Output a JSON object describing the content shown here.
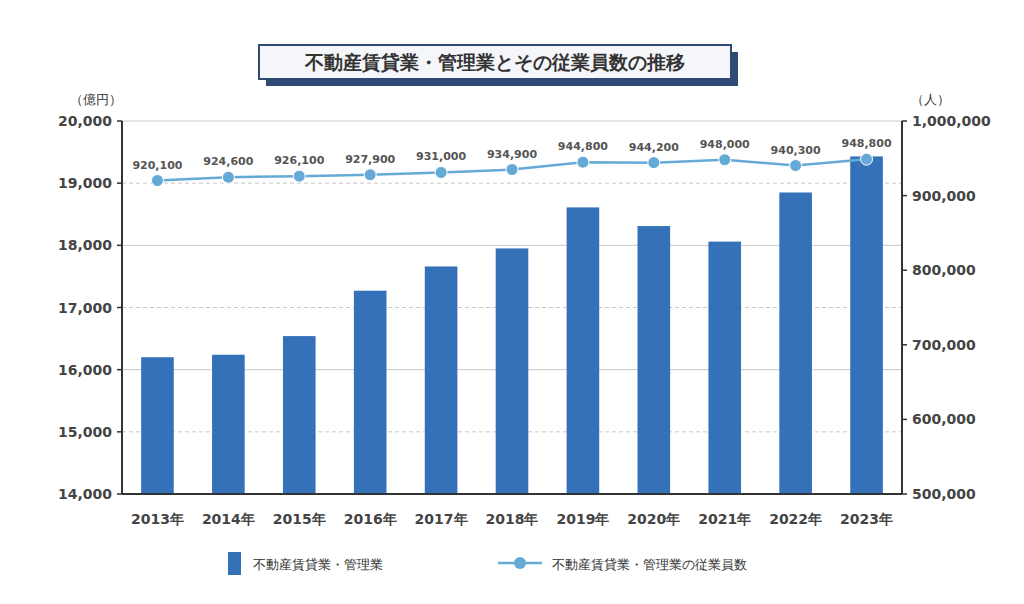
{
  "chart_data": {
    "type": "bar",
    "title": "不動産賃貸業・管理業とその従業員数の推移",
    "y_label": "（億円）",
    "y2_label": "（人）",
    "categories": [
      "2013年",
      "2014年",
      "2015年",
      "2016年",
      "2017年",
      "2018年",
      "2019年",
      "2020年",
      "2021年",
      "2022年",
      "2023年"
    ],
    "ylim": [
      14000,
      20000
    ],
    "yticks": [
      {
        "value": 14000,
        "label": "14,000"
      },
      {
        "value": 15000,
        "label": "15,000"
      },
      {
        "value": 16000,
        "label": "16,000"
      },
      {
        "value": 17000,
        "label": "17,000"
      },
      {
        "value": 18000,
        "label": "18,000"
      },
      {
        "value": 19000,
        "label": "19,000"
      },
      {
        "value": 20000,
        "label": "20,000"
      }
    ],
    "y2lim": [
      500000,
      1000000
    ],
    "y2ticks": [
      {
        "value": 500000,
        "label": "500,000"
      },
      {
        "value": 600000,
        "label": "600,000"
      },
      {
        "value": 700000,
        "label": "700,000"
      },
      {
        "value": 800000,
        "label": "800,000"
      },
      {
        "value": 900000,
        "label": "900,000"
      },
      {
        "value": 1000000,
        "label": "1,000,000"
      }
    ],
    "grid": true,
    "legend": "bottom",
    "series": [
      {
        "name": "不動産賃貸業・管理業",
        "type": "bar",
        "color": "#3571b8",
        "values": [
          16200,
          16240,
          16540,
          17270,
          17660,
          17950,
          18610,
          18310,
          18060,
          18850,
          19430
        ]
      },
      {
        "name": "不動産賃貸業・管理業の従業員数",
        "type": "line",
        "axis": "y2",
        "color": "#65aad6",
        "marker": "circle",
        "data_labels": true,
        "values": [
          920100,
          924600,
          926100,
          927900,
          931000,
          934900,
          944800,
          944200,
          948000,
          940300,
          948800
        ],
        "value_labels": [
          "920,100",
          "924,600",
          "926,100",
          "927,900",
          "931,000",
          "934,900",
          "944,800",
          "944,200",
          "948,000",
          "940,300",
          "948,800"
        ]
      }
    ]
  }
}
